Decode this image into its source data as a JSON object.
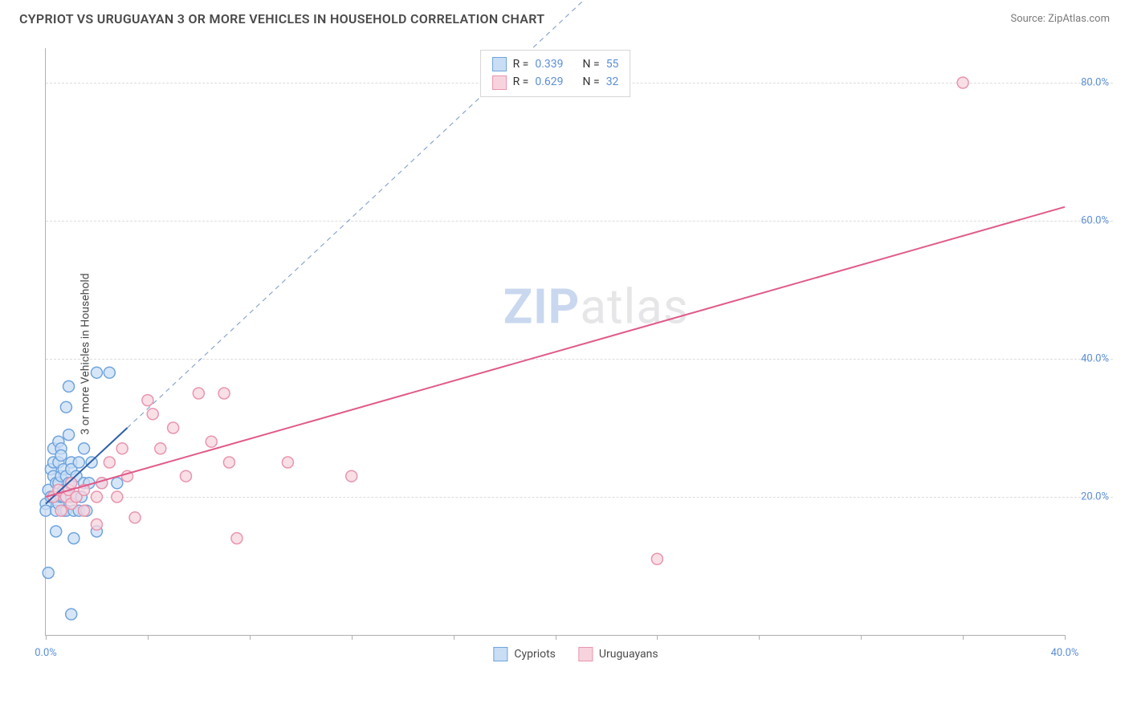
{
  "header": {
    "title": "CYPRIOT VS URUGUAYAN 3 OR MORE VEHICLES IN HOUSEHOLD CORRELATION CHART",
    "source": "Source: ZipAtlas.com"
  },
  "chart": {
    "type": "scatter",
    "y_axis_label": "3 or more Vehicles in Household",
    "xlim": [
      0,
      40
    ],
    "ylim": [
      0,
      85
    ],
    "x_ticks": [
      0,
      4,
      8,
      12,
      16,
      20,
      24,
      28,
      32,
      36,
      40
    ],
    "x_tick_labels": {
      "0": "0.0%",
      "40": "40.0%"
    },
    "y_gridlines": [
      20,
      40,
      60,
      80
    ],
    "y_tick_labels": {
      "20": "20.0%",
      "40": "40.0%",
      "60": "60.0%",
      "80": "80.0%"
    },
    "background_color": "#ffffff",
    "grid_color": "#dcdcdc",
    "axis_color": "#b0b0b0",
    "tick_label_color": "#5b8fd6",
    "marker_radius": 7,
    "marker_stroke_width": 1.5,
    "trend_line_width": 2,
    "watermark": {
      "bold": "ZIP",
      "rest": "atlas"
    },
    "series": [
      {
        "name": "Cypriots",
        "fill": "#c9ddf4",
        "stroke": "#6fa4dd",
        "trend_color": "#2d5fa7",
        "trend_style": "solid_then_dashed",
        "trend": {
          "x1": 0,
          "y1": 19,
          "x2_solid": 3.2,
          "y2_solid": 30,
          "x2_dash": 22,
          "y2_dash": 95
        },
        "r_label": "R =",
        "r_value": "0.339",
        "n_label": "N =",
        "n_value": "55",
        "points": [
          [
            0.0,
            19
          ],
          [
            0.0,
            18
          ],
          [
            0.1,
            21
          ],
          [
            0.1,
            9
          ],
          [
            0.2,
            20
          ],
          [
            0.2,
            24
          ],
          [
            0.3,
            25
          ],
          [
            0.3,
            27
          ],
          [
            0.3,
            20
          ],
          [
            0.3,
            23
          ],
          [
            0.4,
            22
          ],
          [
            0.4,
            15
          ],
          [
            0.4,
            18
          ],
          [
            0.4,
            20
          ],
          [
            0.5,
            28
          ],
          [
            0.5,
            25
          ],
          [
            0.5,
            19
          ],
          [
            0.5,
            22
          ],
          [
            0.6,
            20
          ],
          [
            0.6,
            23
          ],
          [
            0.6,
            27
          ],
          [
            0.6,
            26
          ],
          [
            0.7,
            18
          ],
          [
            0.7,
            21
          ],
          [
            0.7,
            24
          ],
          [
            0.7,
            20
          ],
          [
            0.8,
            33
          ],
          [
            0.8,
            23
          ],
          [
            0.8,
            18
          ],
          [
            0.8,
            20
          ],
          [
            0.9,
            36
          ],
          [
            0.9,
            29
          ],
          [
            0.9,
            22
          ],
          [
            1.0,
            25
          ],
          [
            1.0,
            20
          ],
          [
            1.0,
            22
          ],
          [
            1.0,
            24
          ],
          [
            1.1,
            14
          ],
          [
            1.1,
            18
          ],
          [
            1.2,
            20
          ],
          [
            1.2,
            23
          ],
          [
            1.3,
            25
          ],
          [
            1.3,
            18
          ],
          [
            1.4,
            20
          ],
          [
            1.5,
            27
          ],
          [
            1.5,
            22
          ],
          [
            1.6,
            18
          ],
          [
            1.7,
            22
          ],
          [
            1.8,
            25
          ],
          [
            2.0,
            15
          ],
          [
            2.0,
            38
          ],
          [
            2.2,
            22
          ],
          [
            2.5,
            38
          ],
          [
            2.8,
            22
          ],
          [
            1.0,
            3
          ]
        ]
      },
      {
        "name": "Uruguayans",
        "fill": "#f7d4dd",
        "stroke": "#e895ae",
        "trend_color": "#e05a8a",
        "trend_style": "solid",
        "trend": {
          "x1": 0,
          "y1": 20,
          "x2": 40,
          "y2": 62
        },
        "r_label": "R =",
        "r_value": "0.629",
        "n_label": "N =",
        "n_value": "32",
        "points": [
          [
            0.3,
            20
          ],
          [
            0.5,
            21
          ],
          [
            0.6,
            18
          ],
          [
            0.8,
            20
          ],
          [
            0.9,
            21
          ],
          [
            1.0,
            19
          ],
          [
            1.0,
            22
          ],
          [
            1.2,
            20
          ],
          [
            1.5,
            21
          ],
          [
            1.5,
            18
          ],
          [
            2.0,
            20
          ],
          [
            2.0,
            16
          ],
          [
            2.2,
            22
          ],
          [
            2.5,
            25
          ],
          [
            2.8,
            20
          ],
          [
            3.0,
            27
          ],
          [
            3.2,
            23
          ],
          [
            3.5,
            17
          ],
          [
            4.0,
            34
          ],
          [
            4.2,
            32
          ],
          [
            4.5,
            27
          ],
          [
            5.0,
            30
          ],
          [
            5.5,
            23
          ],
          [
            6.0,
            35
          ],
          [
            6.5,
            28
          ],
          [
            7.0,
            35
          ],
          [
            7.2,
            25
          ],
          [
            7.5,
            14
          ],
          [
            9.5,
            25
          ],
          [
            12.0,
            23
          ],
          [
            24.0,
            11
          ],
          [
            36.0,
            80
          ]
        ]
      }
    ],
    "bottom_legend": [
      {
        "label": "Cypriots",
        "fill": "#c9ddf4",
        "stroke": "#6fa4dd"
      },
      {
        "label": "Uruguayans",
        "fill": "#f7d4dd",
        "stroke": "#e895ae"
      }
    ]
  }
}
